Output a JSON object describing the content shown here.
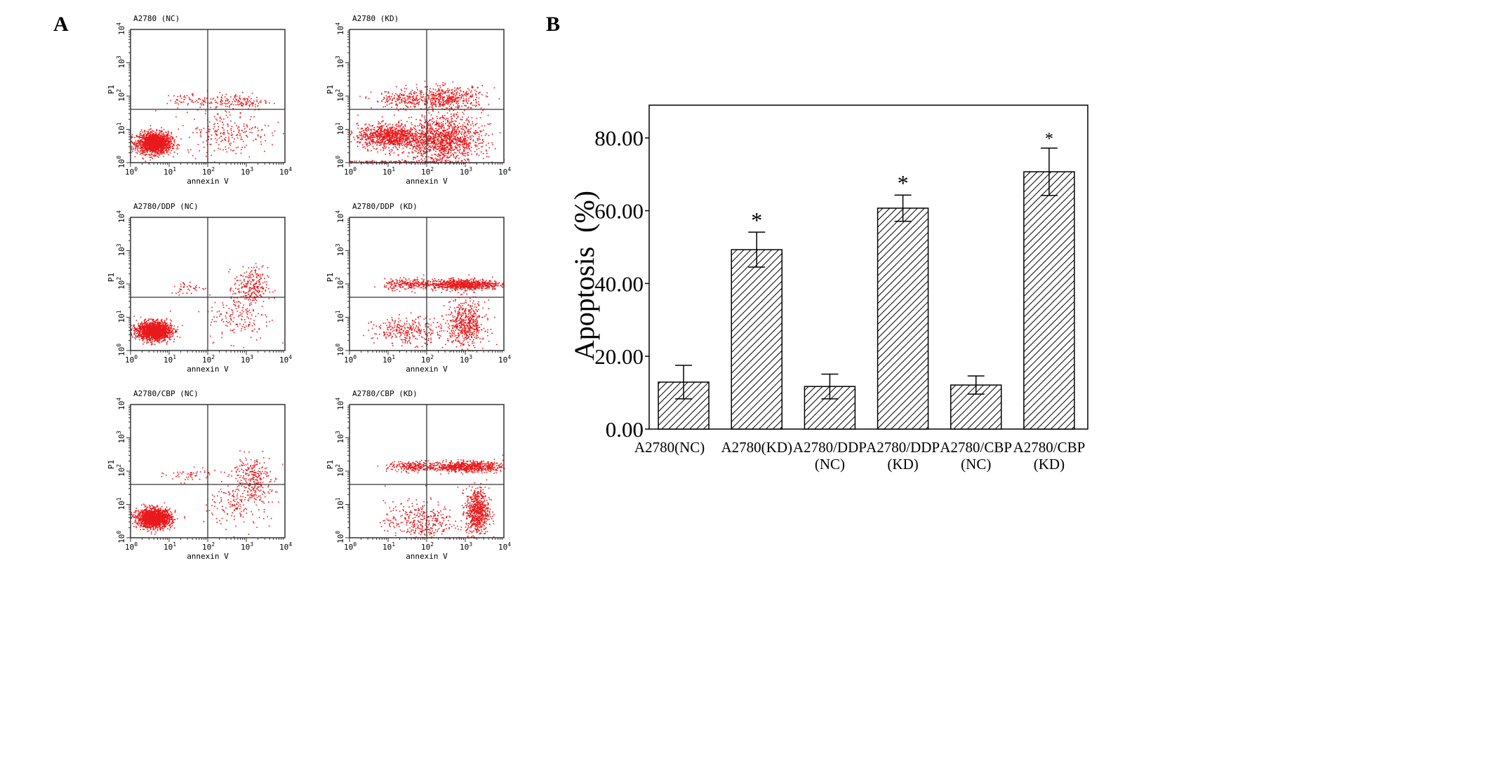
{
  "panel_labels": {
    "a": "A",
    "b": "B"
  },
  "chart_data": [
    {
      "type": "scatter",
      "subtype": "flow-cytometry-dot-plots",
      "x_axis": {
        "label": "annexin V",
        "scale": "log",
        "range_log10": [
          0,
          4
        ],
        "ticks": [
          "10^0",
          "10^1",
          "10^2",
          "10^3",
          "10^4"
        ]
      },
      "y_axis": {
        "label": "P1",
        "scale": "log",
        "range_log10": [
          0,
          4
        ],
        "ticks": [
          "10^0",
          "10^1",
          "10^2",
          "10^3",
          "10^4"
        ]
      },
      "gates_log10": {
        "x": 2.0,
        "y": 1.6
      },
      "point_color": "#e8191c",
      "panels": [
        {
          "title": "A2780 (NC)",
          "clusters": [
            [
              0.6,
              0.6,
              0.22,
              0.16,
              1600
            ],
            [
              2.7,
              1.85,
              0.45,
              0.13,
              160
            ],
            [
              2.5,
              0.9,
              0.55,
              0.32,
              230
            ],
            [
              1.5,
              1.9,
              0.3,
              0.1,
              50
            ]
          ]
        },
        {
          "title": "A2780 (KD)",
          "clusters": [
            [
              1.0,
              0.8,
              0.4,
              0.18,
              900
            ],
            [
              2.4,
              0.7,
              0.5,
              0.35,
              1300
            ],
            [
              2.5,
              1.95,
              0.5,
              0.18,
              500
            ],
            [
              1.3,
              1.9,
              0.35,
              0.14,
              150
            ],
            [
              1.2,
              0.03,
              0.8,
              0.02,
              150
            ]
          ]
        },
        {
          "title": "A2780/DDP (NC)",
          "clusters": [
            [
              0.6,
              0.6,
              0.22,
              0.14,
              1600
            ],
            [
              3.1,
              1.9,
              0.22,
              0.3,
              250
            ],
            [
              2.8,
              1.0,
              0.4,
              0.35,
              150
            ],
            [
              1.5,
              1.9,
              0.25,
              0.1,
              40
            ]
          ]
        },
        {
          "title": "A2780/DDP (KD)",
          "clusters": [
            [
              2.9,
              2.0,
              0.5,
              0.08,
              800
            ],
            [
              1.5,
              2.0,
              0.3,
              0.08,
              200
            ],
            [
              3.0,
              0.8,
              0.25,
              0.35,
              550
            ],
            [
              1.5,
              0.6,
              0.45,
              0.2,
              300
            ]
          ]
        },
        {
          "title": "A2780/CBP (NC)",
          "clusters": [
            [
              0.6,
              0.6,
              0.22,
              0.14,
              1600
            ],
            [
              3.1,
              1.8,
              0.25,
              0.35,
              280
            ],
            [
              2.8,
              1.0,
              0.4,
              0.35,
              150
            ],
            [
              1.5,
              1.9,
              0.3,
              0.1,
              50
            ]
          ]
        },
        {
          "title": "A2780/CBP (KD)",
          "clusters": [
            [
              3.0,
              2.15,
              0.5,
              0.08,
              700
            ],
            [
              1.6,
              2.15,
              0.3,
              0.08,
              200
            ],
            [
              3.3,
              0.8,
              0.15,
              0.35,
              650
            ],
            [
              1.8,
              0.5,
              0.45,
              0.3,
              350
            ]
          ]
        }
      ]
    },
    {
      "type": "bar",
      "ylabel": "Apoptosis  (%)",
      "ylim": [
        0,
        89
      ],
      "yticks": [
        0,
        20,
        40,
        60,
        80
      ],
      "ytick_labels": [
        "0.00",
        "20.00",
        "40.00",
        "60.00",
        "80.00"
      ],
      "categories": [
        [
          "A2780(NC)",
          ""
        ],
        [
          "A2780(KD)",
          ""
        ],
        [
          "A2780/DDP",
          "(NC)"
        ],
        [
          "A2780/DDP",
          "(KD)"
        ],
        [
          "A2780/CBP",
          "(NC)"
        ],
        [
          "A2780/CBP",
          "(KD)"
        ]
      ],
      "values": [
        12.9,
        49.3,
        11.7,
        60.7,
        12.1,
        70.7
      ],
      "errors": [
        4.6,
        4.8,
        3.4,
        3.6,
        2.5,
        6.5
      ],
      "significance": [
        "",
        "*",
        "",
        "*",
        "",
        "*"
      ],
      "fill": "hatched"
    }
  ]
}
